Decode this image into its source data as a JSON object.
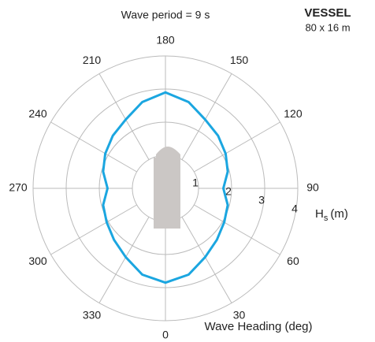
{
  "chart_data": {
    "type": "polar_line",
    "title": "Wave period = 9 s",
    "vessel": {
      "name": "VESSEL",
      "size": "80 x 16 m"
    },
    "theta_label": "Wave Heading (deg)",
    "r_label_parts": [
      "H",
      "s",
      "(m)"
    ],
    "theta_direction": "clockwise",
    "theta_zero": "bottom",
    "rlim": [
      0,
      4
    ],
    "rticks": [
      1,
      2,
      3,
      4
    ],
    "thetaticks": [
      0,
      30,
      60,
      90,
      120,
      150,
      180,
      210,
      240,
      270,
      300,
      330
    ],
    "grid": true,
    "series": [
      {
        "color": "#1ba6e0",
        "theta": [
          0,
          15,
          30,
          45,
          60,
          75,
          90,
          105,
          120,
          135,
          150,
          165,
          180,
          195,
          210,
          225,
          240,
          255,
          270,
          285,
          300,
          315,
          330,
          345
        ],
        "values": [
          2.85,
          2.7,
          2.4,
          2.2,
          2.05,
          1.95,
          1.75,
          1.95,
          2.1,
          2.25,
          2.4,
          2.7,
          2.9,
          2.7,
          2.4,
          2.25,
          2.1,
          1.95,
          1.75,
          1.95,
          2.05,
          2.2,
          2.4,
          2.7
        ]
      }
    ]
  }
}
